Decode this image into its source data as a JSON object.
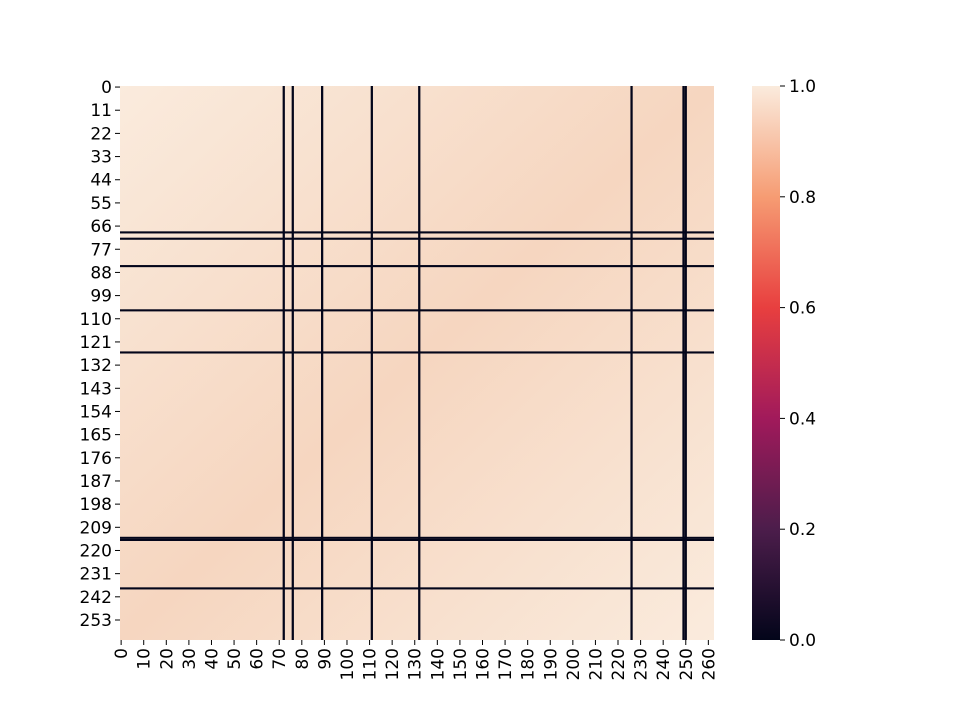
{
  "chart_data": {
    "type": "heatmap",
    "title": "",
    "xlabel": "",
    "ylabel": "",
    "n_rows": 263,
    "n_cols": 263,
    "x_tick_labels": [
      "0",
      "10",
      "20",
      "30",
      "40",
      "50",
      "60",
      "70",
      "80",
      "90",
      "100",
      "110",
      "120",
      "130",
      "140",
      "150",
      "160",
      "170",
      "180",
      "190",
      "200",
      "210",
      "220",
      "230",
      "240",
      "250",
      "260"
    ],
    "y_tick_labels": [
      "0",
      "11",
      "22",
      "33",
      "44",
      "55",
      "66",
      "77",
      "88",
      "99",
      "110",
      "121",
      "132",
      "143",
      "154",
      "165",
      "176",
      "187",
      "198",
      "209",
      "220",
      "231",
      "242",
      "253"
    ],
    "colorbar": {
      "vmin": 0.0,
      "vmax": 1.0,
      "tick_labels": [
        "0.0",
        "0.2",
        "0.4",
        "0.6",
        "0.8",
        "1.0"
      ],
      "colormap": "rocket",
      "stops": [
        "#03051a",
        "#4c1d4b",
        "#a11a5b",
        "#e83f3f",
        "#f69c73",
        "#faebdd"
      ]
    },
    "cell_value_range": [
      0.955,
      1.0
    ],
    "corner_values": {
      "top_left": 1.0,
      "top_right": 0.96,
      "bottom_left": 0.96,
      "bottom_right": 1.0
    },
    "cell_colors": {
      "high": "#faebdd",
      "low": "#f6d6c0"
    },
    "dark_vertical_columns": [
      72,
      76,
      89,
      111,
      132,
      226,
      249,
      250
    ],
    "dark_horizontal_rows": [
      69,
      72,
      85,
      106,
      126,
      214,
      215,
      238
    ],
    "line_color": "#03051a"
  }
}
